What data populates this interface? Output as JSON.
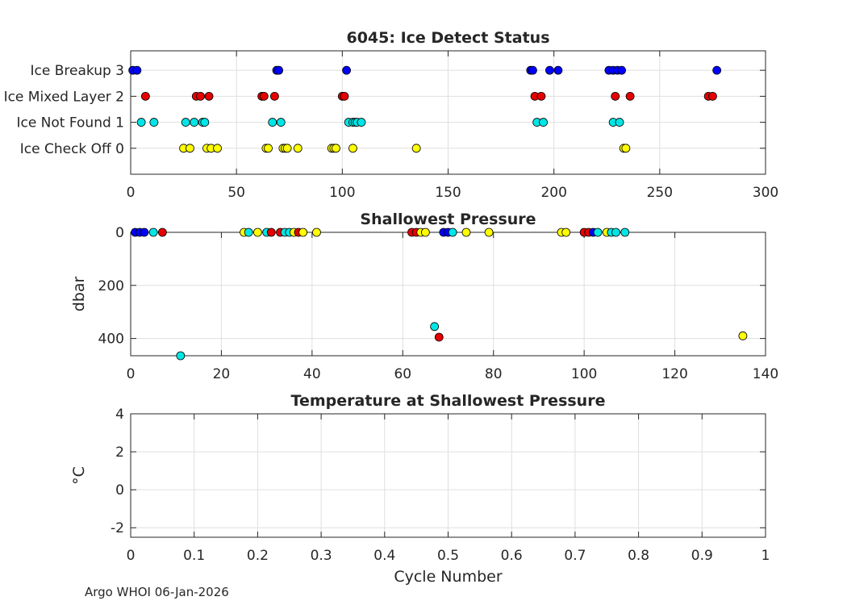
{
  "footer": "Argo WHOI 06-Jan-2026",
  "colors": {
    "blue": "#0000ff",
    "red": "#e60000",
    "cyan": "#00e6e6",
    "yellow": "#ffff00",
    "axis": "#262626",
    "grid": "#dfdfdf"
  },
  "chart_data": [
    {
      "type": "scatter",
      "title": "6045: Ice Detect Status",
      "xlabel": "",
      "ylabel": "",
      "xlim": [
        0,
        300
      ],
      "ylim": [
        -1,
        3.75
      ],
      "xticks": [
        0,
        50,
        100,
        150,
        200,
        250,
        300
      ],
      "yticks": [
        0,
        1,
        2,
        3
      ],
      "ytick_labels": [
        "Ice Check Off 0",
        "Ice Not Found 1",
        "Ice Mixed Layer 2",
        "Ice Breakup 3"
      ],
      "series": [
        {
          "name": "Ice Breakup",
          "color": "blue",
          "y": 3,
          "x": [
            1,
            3,
            69,
            70,
            102,
            189,
            190,
            198,
            202,
            226,
            228,
            230,
            232,
            277
          ]
        },
        {
          "name": "Ice Mixed Layer",
          "color": "red",
          "y": 2,
          "x": [
            7,
            31,
            33,
            37,
            62,
            63,
            68,
            100,
            101,
            191,
            194,
            229,
            236,
            273,
            275
          ]
        },
        {
          "name": "Ice Not Found",
          "color": "cyan",
          "y": 1,
          "x": [
            5,
            11,
            26,
            30,
            34,
            35,
            67,
            71,
            103,
            105,
            106,
            107,
            109,
            192,
            195,
            228,
            231
          ]
        },
        {
          "name": "Ice Check Off",
          "color": "yellow",
          "y": 0,
          "x": [
            25,
            28,
            36,
            38,
            41,
            64,
            65,
            72,
            73,
            74,
            79,
            95,
            96,
            97,
            105,
            135,
            233,
            234
          ]
        }
      ]
    },
    {
      "type": "scatter",
      "title": "Shallowest Pressure",
      "xlabel": "",
      "ylabel": "dbar",
      "xlim": [
        0,
        140
      ],
      "ylim": [
        0,
        465
      ],
      "y_reversed": true,
      "xticks": [
        0,
        20,
        40,
        60,
        80,
        100,
        120,
        140
      ],
      "yticks": [
        0,
        200,
        400
      ],
      "points": [
        {
          "x": 1,
          "y": 0,
          "c": "blue"
        },
        {
          "x": 2,
          "y": 0,
          "c": "blue"
        },
        {
          "x": 3,
          "y": 0,
          "c": "blue"
        },
        {
          "x": 5,
          "y": 0,
          "c": "cyan"
        },
        {
          "x": 7,
          "y": 0,
          "c": "red"
        },
        {
          "x": 11,
          "y": 465,
          "c": "cyan"
        },
        {
          "x": 25,
          "y": 0,
          "c": "yellow"
        },
        {
          "x": 26,
          "y": 0,
          "c": "cyan"
        },
        {
          "x": 28,
          "y": 0,
          "c": "yellow"
        },
        {
          "x": 30,
          "y": 0,
          "c": "cyan"
        },
        {
          "x": 31,
          "y": 0,
          "c": "red"
        },
        {
          "x": 33,
          "y": 0,
          "c": "red"
        },
        {
          "x": 34,
          "y": 0,
          "c": "cyan"
        },
        {
          "x": 35,
          "y": 0,
          "c": "cyan"
        },
        {
          "x": 36,
          "y": 0,
          "c": "yellow"
        },
        {
          "x": 37,
          "y": 0,
          "c": "red"
        },
        {
          "x": 38,
          "y": 0,
          "c": "yellow"
        },
        {
          "x": 41,
          "y": 0,
          "c": "yellow"
        },
        {
          "x": 62,
          "y": 0,
          "c": "red"
        },
        {
          "x": 63,
          "y": 0,
          "c": "red"
        },
        {
          "x": 64,
          "y": 0,
          "c": "yellow"
        },
        {
          "x": 65,
          "y": 0,
          "c": "yellow"
        },
        {
          "x": 67,
          "y": 355,
          "c": "cyan"
        },
        {
          "x": 68,
          "y": 395,
          "c": "red"
        },
        {
          "x": 69,
          "y": 0,
          "c": "blue"
        },
        {
          "x": 70,
          "y": 0,
          "c": "blue"
        },
        {
          "x": 71,
          "y": 0,
          "c": "cyan"
        },
        {
          "x": 74,
          "y": 0,
          "c": "yellow"
        },
        {
          "x": 79,
          "y": 0,
          "c": "yellow"
        },
        {
          "x": 95,
          "y": 0,
          "c": "yellow"
        },
        {
          "x": 96,
          "y": 0,
          "c": "yellow"
        },
        {
          "x": 100,
          "y": 0,
          "c": "red"
        },
        {
          "x": 101,
          "y": 0,
          "c": "red"
        },
        {
          "x": 102,
          "y": 0,
          "c": "blue"
        },
        {
          "x": 103,
          "y": 0,
          "c": "cyan"
        },
        {
          "x": 105,
          "y": 0,
          "c": "yellow"
        },
        {
          "x": 106,
          "y": 0,
          "c": "cyan"
        },
        {
          "x": 107,
          "y": 0,
          "c": "cyan"
        },
        {
          "x": 109,
          "y": 0,
          "c": "cyan"
        },
        {
          "x": 135,
          "y": 390,
          "c": "yellow"
        }
      ]
    },
    {
      "type": "scatter",
      "title": "Temperature at Shallowest Pressure",
      "xlabel": "Cycle Number",
      "ylabel": "°C",
      "xlim": [
        0,
        1
      ],
      "ylim": [
        -2.5,
        4
      ],
      "xticks": [
        0,
        0.1,
        0.2,
        0.3,
        0.4,
        0.5,
        0.6,
        0.7,
        0.8,
        0.9,
        1
      ],
      "yticks": [
        -2,
        0,
        2,
        4
      ],
      "points": []
    }
  ]
}
